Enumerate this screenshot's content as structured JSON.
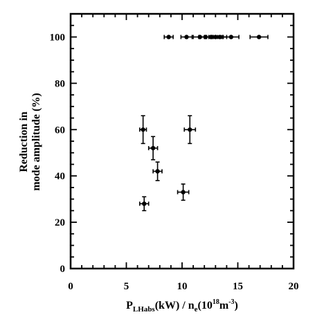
{
  "chart_data": {
    "type": "scatter",
    "title": "",
    "xlim": [
      0,
      20
    ],
    "ylim": [
      0,
      110
    ],
    "x_ticks": [
      "0",
      "5",
      "10",
      "15",
      "20"
    ],
    "y_ticks": [
      "0",
      "20",
      "40",
      "60",
      "80",
      "100"
    ],
    "grid": false,
    "legend": "none",
    "xlabel": {
      "p1": "P",
      "p1_sub": "LHabs",
      "p2": "(kW) / n",
      "p2_sub": "e",
      "p3": "(10",
      "p3_sup": "18",
      "p4": "m",
      "p4_sup": "-3",
      "p5": ")"
    },
    "ylabel": {
      "line1": "Reduction in",
      "line2": "mode amplitude (%)"
    },
    "points": [
      {
        "x": 8.8,
        "y": 100,
        "xerr": 0.4,
        "yerr": 0
      },
      {
        "x": 10.4,
        "y": 100,
        "xerr": 0.5,
        "yerr": 0
      },
      {
        "x": 11.6,
        "y": 100,
        "xerr": 0.6,
        "yerr": 0
      },
      {
        "x": 12.1,
        "y": 100,
        "xerr": 0.6,
        "yerr": 0
      },
      {
        "x": 12.6,
        "y": 100,
        "xerr": 0.6,
        "yerr": 0
      },
      {
        "x": 13.0,
        "y": 100,
        "xerr": 0.6,
        "yerr": 0
      },
      {
        "x": 13.4,
        "y": 100,
        "xerr": 0.6,
        "yerr": 0
      },
      {
        "x": 14.4,
        "y": 100,
        "xerr": 0.7,
        "yerr": 0
      },
      {
        "x": 16.9,
        "y": 100,
        "xerr": 0.8,
        "yerr": 0
      },
      {
        "x": 6.5,
        "y": 60,
        "xerr": 0.3,
        "yerr": 6
      },
      {
        "x": 10.7,
        "y": 60,
        "xerr": 0.5,
        "yerr": 6
      },
      {
        "x": 7.4,
        "y": 52,
        "xerr": 0.4,
        "yerr": 5
      },
      {
        "x": 7.8,
        "y": 42,
        "xerr": 0.4,
        "yerr": 4
      },
      {
        "x": 10.1,
        "y": 33,
        "xerr": 0.5,
        "yerr": 3.5
      },
      {
        "x": 6.6,
        "y": 28,
        "xerr": 0.4,
        "yerr": 3
      }
    ]
  }
}
